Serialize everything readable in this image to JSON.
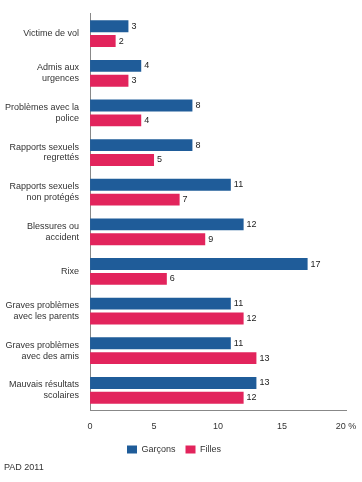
{
  "chart_data": {
    "type": "bar",
    "orientation": "horizontal",
    "categories": [
      "Victime de vol",
      "Admis aux urgences",
      "Problèmes avec la police",
      "Rapports sexuels regrettés",
      "Rapports sexuels non protégés",
      "Blessures ou accident",
      "Rixe",
      "Graves problèmes avec les parents",
      "Graves problèmes avec des amis",
      "Mauvais résultats scolaires"
    ],
    "series": [
      {
        "name": "Garçons",
        "color": "#1f5c99",
        "values": [
          3,
          4,
          8,
          8,
          11,
          12,
          17,
          11,
          11,
          13
        ]
      },
      {
        "name": "Filles",
        "color": "#e2245c",
        "values": [
          2,
          3,
          4,
          5,
          7,
          9,
          6,
          12,
          13,
          12
        ]
      }
    ],
    "xlim": [
      0,
      20
    ],
    "xticks": [
      0,
      5,
      10,
      15,
      {
        "value": 20,
        "label": "20 %"
      }
    ],
    "grid": false,
    "legend": "bottom",
    "data_labels": true,
    "source": "PAD 2011"
  }
}
